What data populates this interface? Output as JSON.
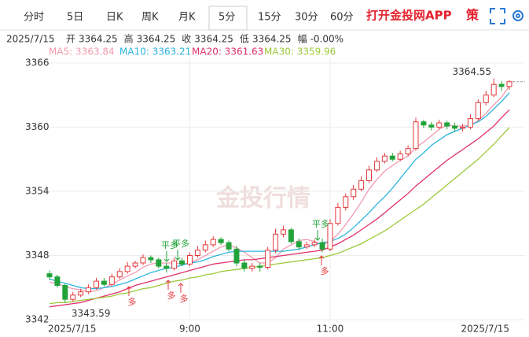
{
  "tabs": [
    "分时",
    "5日",
    "日K",
    "周K",
    "月K",
    "5分",
    "15分",
    "30分",
    "60分"
  ],
  "active_tab": "5分",
  "brand": "打开金投网APP",
  "strategy": "策",
  "info": {
    "date": "2025/7/15",
    "items": [
      {
        "label": "开",
        "value": 3364.25
      },
      {
        "label": "高",
        "value": 3364.25
      },
      {
        "label": "收",
        "value": 3364.25
      },
      {
        "label": "低",
        "value": 3364.25
      },
      {
        "label": "幅",
        "value": "-0.00%"
      }
    ]
  },
  "watermark": "金投行情",
  "chart_data": {
    "type": "candlestick",
    "categories": [
      "2025/7/15",
      null,
      null,
      null,
      null,
      null,
      null,
      null,
      null,
      null,
      null,
      null,
      null,
      null,
      null,
      null,
      null,
      null,
      "9:00",
      null,
      null,
      null,
      null,
      null,
      null,
      null,
      null,
      null,
      null,
      null,
      null,
      null,
      null,
      null,
      null,
      null,
      "11:00",
      null,
      null,
      null,
      null,
      null,
      null,
      null,
      null,
      null,
      null,
      null,
      null,
      null,
      null,
      null,
      null,
      null,
      null,
      null,
      null,
      null,
      null,
      "2025/7/15"
    ],
    "open": [
      3346.3,
      3346.0,
      3345.2,
      3343.9,
      3344.3,
      3344.6,
      3345.0,
      3345.6,
      3345.3,
      3346.0,
      3346.5,
      3347.0,
      3347.3,
      3347.8,
      3347.6,
      3347.0,
      3346.8,
      3347.5,
      3347.2,
      3348.0,
      3348.5,
      3349.0,
      3349.5,
      3349.2,
      3348.6,
      3347.3,
      3346.8,
      3347.0,
      3346.9,
      3348.5,
      3350.0,
      3350.4,
      3349.3,
      3348.8,
      3349.0,
      3349.2,
      3348.6,
      3351.0,
      3352.5,
      3353.5,
      3354.2,
      3355.0,
      3356.0,
      3356.8,
      3357.3,
      3357.0,
      3357.5,
      3358.0,
      3360.5,
      3360.2,
      3360.0,
      3360.4,
      3360.1,
      3359.9,
      3360.0,
      3360.8,
      3362.3,
      3363.0,
      3364.0,
      3363.8
    ],
    "high": [
      3346.6,
      3346.2,
      3345.4,
      3344.6,
      3344.9,
      3345.3,
      3345.9,
      3345.9,
      3346.3,
      3346.8,
      3347.4,
      3347.5,
      3348.1,
      3348.0,
      3347.8,
      3347.3,
      3347.8,
      3347.8,
      3348.3,
      3348.9,
      3349.4,
      3349.8,
      3349.7,
      3349.4,
      3348.9,
      3347.6,
      3347.3,
      3347.3,
      3348.8,
      3350.5,
      3350.8,
      3350.6,
      3349.6,
      3349.3,
      3349.5,
      3349.6,
      3351.4,
      3352.9,
      3353.8,
      3354.6,
      3355.4,
      3356.4,
      3357.2,
      3357.6,
      3357.6,
      3357.8,
      3358.3,
      3360.9,
      3360.7,
      3360.5,
      3360.7,
      3360.6,
      3360.4,
      3360.3,
      3361.2,
      3362.6,
      3363.4,
      3364.55,
      3364.3,
      3364.4
    ],
    "low": [
      3345.7,
      3345.0,
      3343.59,
      3343.7,
      3344.1,
      3344.4,
      3344.8,
      3345.1,
      3345.1,
      3345.8,
      3346.3,
      3346.8,
      3347.1,
      3347.3,
      3346.8,
      3346.4,
      3346.6,
      3347.0,
      3347.0,
      3347.8,
      3348.3,
      3348.8,
      3349.0,
      3348.4,
      3347.0,
      3346.5,
      3346.5,
      3346.5,
      3346.7,
      3348.2,
      3349.7,
      3349.1,
      3348.5,
      3348.6,
      3348.8,
      3348.3,
      3348.4,
      3350.8,
      3352.2,
      3353.2,
      3354.0,
      3354.8,
      3355.8,
      3356.6,
      3356.8,
      3356.8,
      3357.3,
      3357.8,
      3359.9,
      3359.7,
      3359.8,
      3359.8,
      3359.6,
      3359.6,
      3359.8,
      3360.6,
      3362.0,
      3362.8,
      3363.4,
      3363.5
    ],
    "close": [
      3346.0,
      3345.2,
      3343.9,
      3344.3,
      3344.6,
      3345.0,
      3345.6,
      3345.3,
      3346.0,
      3346.5,
      3347.0,
      3347.3,
      3347.8,
      3347.6,
      3347.0,
      3346.8,
      3347.5,
      3347.2,
      3348.0,
      3348.5,
      3349.0,
      3349.5,
      3349.2,
      3348.6,
      3347.3,
      3346.8,
      3347.0,
      3346.9,
      3348.5,
      3350.0,
      3350.4,
      3349.3,
      3348.8,
      3349.0,
      3349.2,
      3348.6,
      3351.0,
      3352.5,
      3353.5,
      3354.2,
      3355.0,
      3356.0,
      3356.8,
      3357.3,
      3357.0,
      3357.5,
      3358.0,
      3360.5,
      3360.2,
      3360.0,
      3360.4,
      3360.1,
      3359.9,
      3360.0,
      3360.8,
      3362.3,
      3363.0,
      3364.0,
      3363.8,
      3364.25
    ],
    "up_color": "#e4393c",
    "down_color": "#22a33a",
    "ma": [
      {
        "name": "MA5: 3363.84",
        "color": "#f39ab0",
        "values": [
          3345.5,
          3345.4,
          3345.1,
          3344.9,
          3344.8,
          3344.6,
          3344.7,
          3345.0,
          3345.3,
          3345.7,
          3346.1,
          3346.4,
          3346.9,
          3347.2,
          3347.3,
          3347.3,
          3347.3,
          3347.2,
          3347.3,
          3347.6,
          3348.0,
          3348.4,
          3348.8,
          3349.0,
          3348.7,
          3348.3,
          3347.8,
          3347.3,
          3347.3,
          3347.8,
          3348.6,
          3349.0,
          3349.4,
          3349.5,
          3349.3,
          3349.0,
          3349.3,
          3350.0,
          3350.9,
          3351.9,
          3353.0,
          3354.2,
          3355.1,
          3355.9,
          3356.4,
          3356.9,
          3357.3,
          3358.1,
          3358.6,
          3359.2,
          3359.8,
          3360.2,
          3360.1,
          3360.1,
          3360.2,
          3360.6,
          3361.3,
          3362.1,
          3362.8,
          3363.84
        ]
      },
      {
        "name": "MA10: 3363.21",
        "color": "#2cb5de",
        "values": [
          3345.8,
          3345.6,
          3345.4,
          3345.2,
          3345.0,
          3344.9,
          3344.9,
          3345.0,
          3345.1,
          3345.3,
          3345.5,
          3345.8,
          3346.1,
          3346.4,
          3346.6,
          3346.8,
          3346.9,
          3347.1,
          3347.3,
          3347.4,
          3347.6,
          3347.9,
          3348.1,
          3348.3,
          3348.4,
          3348.4,
          3348.4,
          3348.4,
          3348.4,
          3348.4,
          3348.4,
          3348.5,
          3348.6,
          3348.8,
          3349.0,
          3349.2,
          3349.3,
          3349.6,
          3350.0,
          3350.6,
          3351.3,
          3352.0,
          3352.8,
          3353.5,
          3354.3,
          3355.2,
          3356.1,
          3357.0,
          3357.6,
          3358.3,
          3358.8,
          3359.3,
          3359.6,
          3359.9,
          3360.2,
          3360.5,
          3361.0,
          3361.7,
          3362.4,
          3363.21
        ]
      },
      {
        "name": "MA20: 3361.63",
        "color": "#e0306a",
        "values": [
          3343.2,
          3343.3,
          3343.4,
          3343.5,
          3343.6,
          3343.8,
          3344.0,
          3344.2,
          3344.4,
          3344.6,
          3344.9,
          3345.2,
          3345.4,
          3345.6,
          3345.8,
          3346.0,
          3346.2,
          3346.4,
          3346.6,
          3346.8,
          3347.0,
          3347.2,
          3347.3,
          3347.4,
          3347.5,
          3347.6,
          3347.6,
          3347.7,
          3347.8,
          3347.9,
          3348.0,
          3348.1,
          3348.2,
          3348.3,
          3348.4,
          3348.5,
          3348.8,
          3349.1,
          3349.5,
          3349.9,
          3350.4,
          3350.9,
          3351.4,
          3352.0,
          3352.6,
          3353.2,
          3353.8,
          3354.5,
          3355.1,
          3355.7,
          3356.3,
          3356.9,
          3357.4,
          3357.9,
          3358.4,
          3358.9,
          3359.5,
          3360.1,
          3360.9,
          3361.63
        ]
      },
      {
        "name": "MA30: 3359.96",
        "color": "#9cc93a",
        "values": [
          3343.5,
          3343.6,
          3343.6,
          3343.7,
          3343.8,
          3343.9,
          3344.0,
          3344.1,
          3344.2,
          3344.4,
          3344.5,
          3344.7,
          3344.9,
          3345.0,
          3345.2,
          3345.4,
          3345.6,
          3345.7,
          3345.9,
          3346.0,
          3346.2,
          3346.3,
          3346.5,
          3346.6,
          3346.7,
          3346.8,
          3346.9,
          3347.0,
          3347.1,
          3347.2,
          3347.3,
          3347.4,
          3347.5,
          3347.6,
          3347.7,
          3347.8,
          3348.0,
          3348.2,
          3348.5,
          3348.8,
          3349.1,
          3349.5,
          3349.9,
          3350.3,
          3350.8,
          3351.3,
          3351.8,
          3352.3,
          3352.8,
          3353.4,
          3354.0,
          3354.6,
          3355.2,
          3355.8,
          3356.4,
          3357.0,
          3357.7,
          3358.4,
          3359.2,
          3359.96
        ]
      }
    ],
    "ylim": [
      3342,
      3366
    ],
    "yticks": [
      3342,
      3348,
      3354,
      3360,
      3366
    ],
    "grid": true,
    "signals": [
      "平多",
      "平多",
      "平多",
      "多",
      "多",
      "多",
      "多"
    ]
  }
}
